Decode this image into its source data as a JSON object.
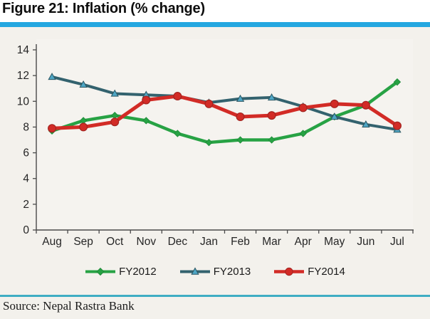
{
  "title": "Figure 21: Inflation (% change)",
  "source": "Source: Nepal Rastra Bank",
  "colors": {
    "accent_bar": "#24a7e0",
    "bottom_divider": "#3fadc3",
    "panel_background": "#f3f1ec",
    "plot_background": "#f5f3ef",
    "axis": "#4a4a4a",
    "tick_label": "#262626"
  },
  "chart_data": {
    "type": "line",
    "title": "Figure 21: Inflation (% change)",
    "xlabel": "",
    "ylabel": "",
    "categories": [
      "Aug",
      "Sep",
      "Oct",
      "Nov",
      "Dec",
      "Jan",
      "Feb",
      "Mar",
      "Apr",
      "May",
      "Jun",
      "Jul"
    ],
    "series": [
      {
        "name": "FY2012",
        "marker": "diamond",
        "color": "#27a244",
        "marker_fill": "#27a244",
        "marker_edge": "#1e8a38",
        "values": [
          7.7,
          8.5,
          8.9,
          8.5,
          7.5,
          6.8,
          7.0,
          7.0,
          7.5,
          8.8,
          9.7,
          11.5
        ]
      },
      {
        "name": "FY2013",
        "marker": "triangle",
        "color": "#33626e",
        "marker_fill": "#4ea6c5",
        "marker_edge": "#2b5662",
        "values": [
          11.9,
          11.3,
          10.6,
          10.5,
          10.4,
          9.9,
          10.2,
          10.3,
          9.6,
          8.8,
          8.2,
          7.8
        ]
      },
      {
        "name": "FY2014",
        "marker": "circle",
        "color": "#d22b26",
        "marker_fill": "#d22b26",
        "marker_edge": "#a32420",
        "values": [
          7.9,
          8.0,
          8.4,
          10.1,
          10.4,
          9.8,
          8.8,
          8.9,
          9.5,
          9.8,
          9.7,
          8.1
        ]
      }
    ],
    "ylim": [
      0,
      14
    ],
    "ytick_step": 2,
    "grid": false,
    "legend_position": "bottom"
  }
}
